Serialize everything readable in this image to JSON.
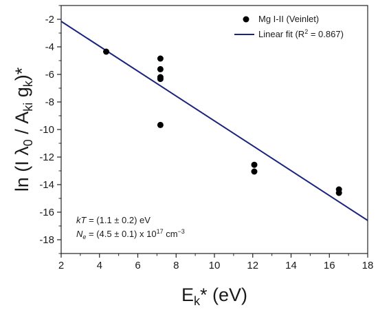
{
  "chart_data": {
    "type": "scatter",
    "xlabel": {
      "base": "E",
      "sub": "k",
      "rest": "* (eV)"
    },
    "ylabel": {
      "p1": "ln (I λ",
      "s1": "0",
      "p2": " / A",
      "s2": "ki",
      "p3": " g",
      "s3": "k",
      "p4": ")*"
    },
    "xlim": [
      2,
      18
    ],
    "ylim": [
      -19,
      -1
    ],
    "xticks": [
      2,
      4,
      6,
      8,
      10,
      12,
      14,
      16,
      18
    ],
    "yticks": [
      -2,
      -4,
      -6,
      -8,
      -10,
      -12,
      -14,
      -16,
      -18
    ],
    "grid": false,
    "legend_position": "top-right",
    "series": [
      {
        "name": "Mg I-II (Veinlet)",
        "kind": "scatter",
        "color": "#000000",
        "points": [
          {
            "x": 4.35,
            "y": -4.35
          },
          {
            "x": 7.18,
            "y": -4.85
          },
          {
            "x": 7.18,
            "y": -5.62
          },
          {
            "x": 7.18,
            "y": -6.2
          },
          {
            "x": 7.18,
            "y": -6.33
          },
          {
            "x": 7.18,
            "y": -9.67
          },
          {
            "x": 12.08,
            "y": -12.56
          },
          {
            "x": 12.08,
            "y": -13.05
          },
          {
            "x": 16.5,
            "y": -14.35
          },
          {
            "x": 16.5,
            "y": -14.6
          }
        ]
      },
      {
        "name": "Linear fit (R",
        "name_sup": "2",
        "name_tail": " = 0.867)",
        "kind": "line",
        "color": "#1a237e",
        "x": [
          2,
          18
        ],
        "y": [
          -2.15,
          -16.6
        ]
      }
    ],
    "annotations": {
      "kt": {
        "italic": "kT",
        "rest": " = (1.1 ± 0.2) eV"
      },
      "ne": {
        "italic": "N",
        "sub": "e",
        "mid": " = (4.5 ± 0.1) x 10",
        "sup": "17",
        "tail": " cm",
        "sup2": "−3"
      }
    }
  }
}
